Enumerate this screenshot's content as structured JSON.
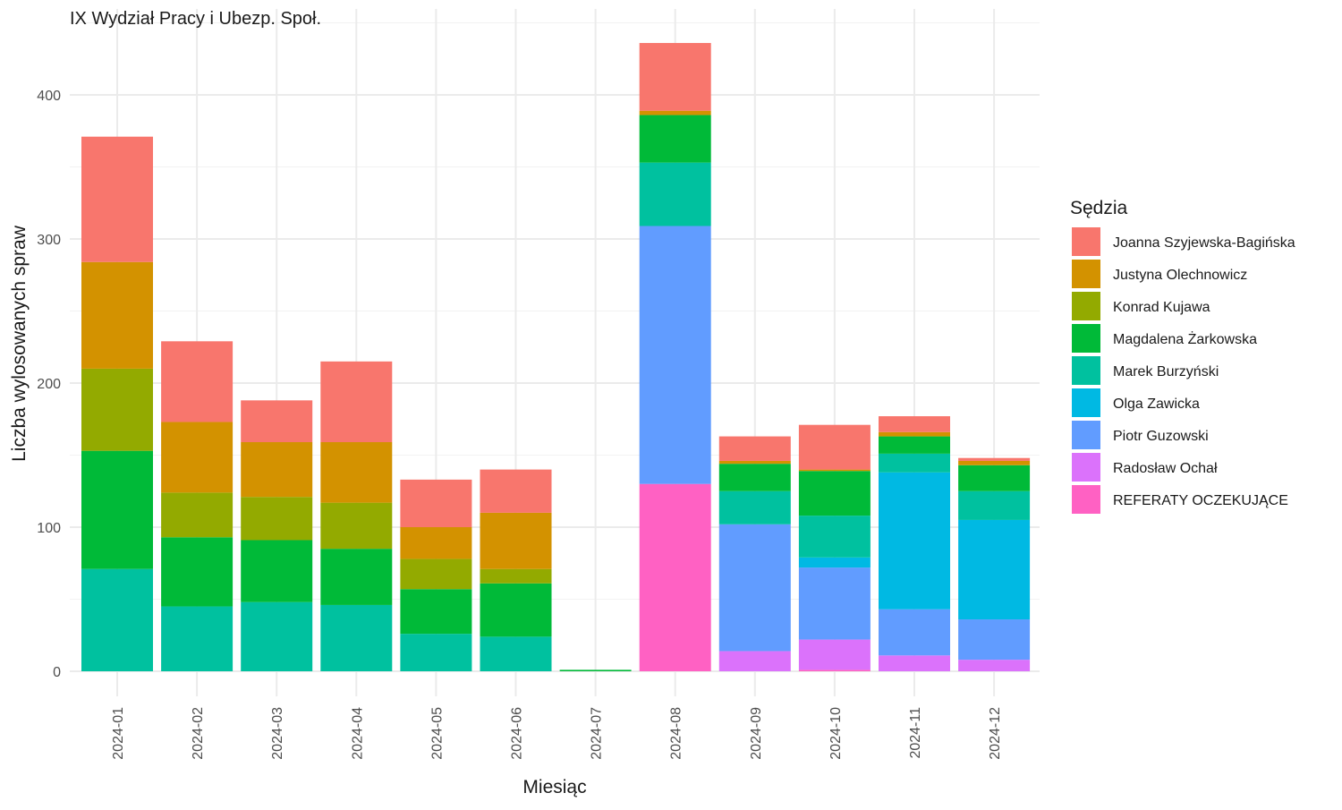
{
  "chart_data": {
    "type": "bar",
    "stacked": true,
    "title": "IX Wydział Pracy i Ubezp. Społ.",
    "xlabel": "Miesiąc",
    "ylabel": "Liczba wylosowanych spraw",
    "ylim": [
      0,
      450
    ],
    "yticks": [
      0,
      100,
      200,
      300,
      400
    ],
    "grid": true,
    "legend_title": "Sędzia",
    "legend_position": "right",
    "categories": [
      "2024-01",
      "2024-02",
      "2024-03",
      "2024-04",
      "2024-05",
      "2024-06",
      "2024-07",
      "2024-08",
      "2024-09",
      "2024-10",
      "2024-11",
      "2024-12"
    ],
    "series": [
      {
        "name": "Joanna Szyjewska-Bagińska",
        "color": "#F8766D",
        "values": [
          87,
          56,
          29,
          56,
          33,
          30,
          0,
          47,
          17,
          31,
          11,
          2
        ]
      },
      {
        "name": "Justyna Olechnowicz",
        "color": "#D39200",
        "values": [
          74,
          49,
          38,
          42,
          22,
          39,
          0,
          3,
          2,
          1,
          3,
          3
        ]
      },
      {
        "name": "Konrad Kujawa",
        "color": "#93AA00",
        "values": [
          57,
          31,
          30,
          32,
          21,
          10,
          0,
          0,
          0,
          0,
          0,
          0
        ]
      },
      {
        "name": "Magdalena Żarkowska",
        "color": "#00BA38",
        "values": [
          82,
          48,
          43,
          39,
          31,
          37,
          1,
          33,
          19,
          31,
          12,
          18
        ]
      },
      {
        "name": "Marek Burzyński",
        "color": "#00C19F",
        "values": [
          71,
          45,
          48,
          46,
          26,
          24,
          0,
          44,
          23,
          29,
          13,
          20
        ]
      },
      {
        "name": "Olga Zawicka",
        "color": "#00B9E3",
        "values": [
          0,
          0,
          0,
          0,
          0,
          0,
          0,
          0,
          0,
          7,
          95,
          69
        ]
      },
      {
        "name": "Piotr Guzowski",
        "color": "#619CFF",
        "values": [
          0,
          0,
          0,
          0,
          0,
          0,
          0,
          179,
          88,
          50,
          32,
          28
        ]
      },
      {
        "name": "Radosław Ochał",
        "color": "#DB72FB",
        "values": [
          0,
          0,
          0,
          0,
          0,
          0,
          0,
          0,
          14,
          21,
          11,
          8
        ]
      },
      {
        "name": "REFERATY OCZEKUJĄCE",
        "color": "#FF61C3",
        "values": [
          0,
          0,
          0,
          0,
          0,
          0,
          0,
          130,
          0,
          1,
          0,
          0
        ]
      }
    ]
  }
}
